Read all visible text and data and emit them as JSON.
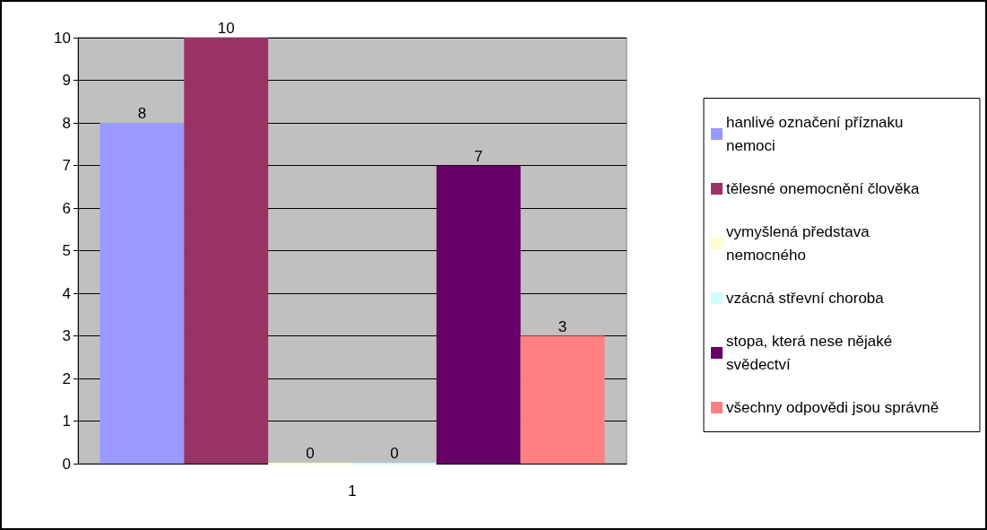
{
  "chart_data": {
    "type": "bar",
    "categories": [
      "1"
    ],
    "series": [
      {
        "name": "hanlivé označení příznaku nemoci",
        "color": "#9999ff",
        "values": [
          8
        ]
      },
      {
        "name": "tělesné onemocnění člověka",
        "color": "#993366",
        "values": [
          10
        ]
      },
      {
        "name": "vymyšlená představa nemocného",
        "color": "#ffffcc",
        "values": [
          0
        ]
      },
      {
        "name": "vzácná střevní choroba",
        "color": "#ccffff",
        "values": [
          0
        ]
      },
      {
        "name": "stopa, která nese nějaké svědectví",
        "color": "#660066",
        "values": [
          7
        ]
      },
      {
        "name": "všechny odpovědi jsou správně",
        "color": "#ff8080",
        "values": [
          3
        ]
      }
    ],
    "ylim": [
      0,
      10
    ],
    "yticks": [
      0,
      1,
      2,
      3,
      4,
      5,
      6,
      7,
      8,
      9,
      10
    ],
    "grid": "y",
    "legend": "right",
    "data_labels": true
  }
}
